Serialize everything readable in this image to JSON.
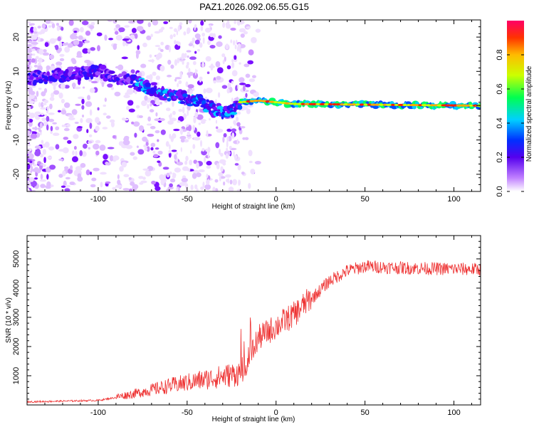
{
  "title": "PAZ1.2026.092.06.55.G15",
  "chart_data": [
    {
      "type": "heatmap",
      "xlabel": "Height of straight line (km)",
      "ylabel": "Frequency (Hz)",
      "xlim": [
        -140,
        115
      ],
      "ylim": [
        -25,
        25
      ],
      "xticks": [
        -100,
        -50,
        0,
        50,
        100
      ],
      "yticks": [
        -20,
        -10,
        0,
        10,
        20
      ],
      "colorbar": {
        "label": "Normalized spectral amplitude",
        "range": [
          0.0,
          1.0
        ],
        "ticks": [
          0.0,
          0.2,
          0.4,
          0.6,
          0.8
        ]
      },
      "ridge_line": {
        "x": [
          -140,
          -100,
          -80,
          -60,
          -45,
          -35,
          -25,
          -20,
          -10,
          0,
          10,
          115
        ],
        "y": [
          8,
          10,
          7,
          3,
          1.5,
          -1,
          -2,
          1,
          1.5,
          1,
          0.5,
          0
        ]
      }
    },
    {
      "type": "line",
      "xlabel": "Height of straight line (km)",
      "ylabel": "SNR (10 * v/v)",
      "xlim": [
        -140,
        115
      ],
      "ylim": [
        0,
        5800
      ],
      "xticks": [
        -100,
        -50,
        0,
        50,
        100
      ],
      "yticks": [
        1000,
        2000,
        3000,
        4000,
        5000
      ],
      "series_color": "#ee3333",
      "trend": {
        "x": [
          -140,
          -100,
          -80,
          -60,
          -40,
          -30,
          -20,
          -15,
          -10,
          0,
          10,
          20,
          30,
          40,
          50,
          70,
          90,
          115
        ],
        "y": [
          100,
          150,
          350,
          600,
          800,
          900,
          1000,
          1500,
          2200,
          2600,
          3000,
          3600,
          4200,
          4550,
          4700,
          4650,
          4620,
          4600
        ]
      }
    }
  ]
}
